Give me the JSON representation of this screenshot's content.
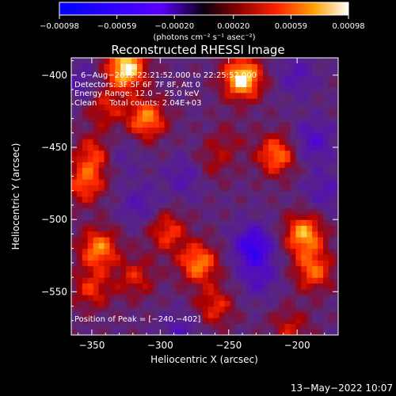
{
  "chart_data": {
    "type": "heatmap",
    "title": "Reconstructed RHESSI Image",
    "xlabel": "Heliocentric X (arcsec)",
    "ylabel": "Heliocentric Y (arcsec)",
    "xlim": [
      -365,
      -170
    ],
    "ylim": [
      -580,
      -388
    ],
    "x_ticks": [
      {
        "value": -350,
        "label": "−350"
      },
      {
        "value": -300,
        "label": "−300"
      },
      {
        "value": -250,
        "label": "−250"
      },
      {
        "value": -200,
        "label": "−200"
      }
    ],
    "y_ticks": [
      {
        "value": -400,
        "label": "−400"
      },
      {
        "value": -450,
        "label": "−450"
      },
      {
        "value": -500,
        "label": "−500"
      },
      {
        "value": -550,
        "label": "−550"
      }
    ],
    "colorbar": {
      "range": [
        -0.00098,
        0.00098
      ],
      "tick_values": [
        -0.00098,
        -0.00059,
        -0.0002,
        0.0002,
        0.00059,
        0.00098
      ],
      "tick_labels": [
        "−0.00098",
        "−0.00059",
        "−0.00020",
        "0.00020",
        "0.00059",
        "0.00098"
      ],
      "unit_label": "(photons cm⁻² s⁻¹ asec⁻²)"
    },
    "annotations": [
      "6−Aug−2012 22:21:52.000 to 22:25:52.000",
      "Detectors: 3F 5F 6F 7F 8F, Att 0",
      "Energy Range: 12.0 − 25.0 keV",
      "Clean     Total counts: 2.04E+03"
    ],
    "peak_label": "Position of Peak = [−240,−402]",
    "peak_position": [
      -240,
      -402
    ],
    "blobs": [
      {
        "x": -325,
        "y": -395,
        "value": 0.00098
      },
      {
        "x": -240,
        "y": -402,
        "value": 0.00098
      },
      {
        "x": -310,
        "y": -430,
        "value": 0.0007
      },
      {
        "x": -340,
        "y": -422,
        "value": 0.0004
      },
      {
        "x": -355,
        "y": -475,
        "value": 0.00055
      },
      {
        "x": -348,
        "y": -455,
        "value": 0.0005
      },
      {
        "x": -345,
        "y": -520,
        "value": 0.0007
      },
      {
        "x": -350,
        "y": -548,
        "value": 0.00045
      },
      {
        "x": -272,
        "y": -530,
        "value": 0.0007
      },
      {
        "x": -295,
        "y": -508,
        "value": 0.0005
      },
      {
        "x": -260,
        "y": -560,
        "value": 0.00045
      },
      {
        "x": -318,
        "y": -540,
        "value": 0.0004
      },
      {
        "x": -215,
        "y": -455,
        "value": 0.00065
      },
      {
        "x": -195,
        "y": -510,
        "value": 0.00078
      },
      {
        "x": -188,
        "y": -535,
        "value": 0.0006
      },
      {
        "x": -205,
        "y": -575,
        "value": 0.00035
      },
      {
        "x": -262,
        "y": -460,
        "value": 0.00025
      },
      {
        "x": -250,
        "y": -445,
        "value": 0.00018
      },
      {
        "x": -315,
        "y": -490,
        "value": -0.0003
      },
      {
        "x": -232,
        "y": -518,
        "value": -0.00068
      },
      {
        "x": -188,
        "y": -445,
        "value": -0.00042
      },
      {
        "x": -282,
        "y": -470,
        "value": -0.0003
      },
      {
        "x": -228,
        "y": -540,
        "value": -0.00035
      },
      {
        "x": -180,
        "y": -480,
        "value": -0.0003
      },
      {
        "x": -285,
        "y": -578,
        "value": -0.0003
      },
      {
        "x": -330,
        "y": -455,
        "value": -0.00022
      },
      {
        "x": -358,
        "y": -405,
        "value": -0.00025
      },
      {
        "x": -200,
        "y": -400,
        "value": -0.0003
      }
    ]
  },
  "footer": {
    "timestamp": "13−May−2022 10:07"
  }
}
